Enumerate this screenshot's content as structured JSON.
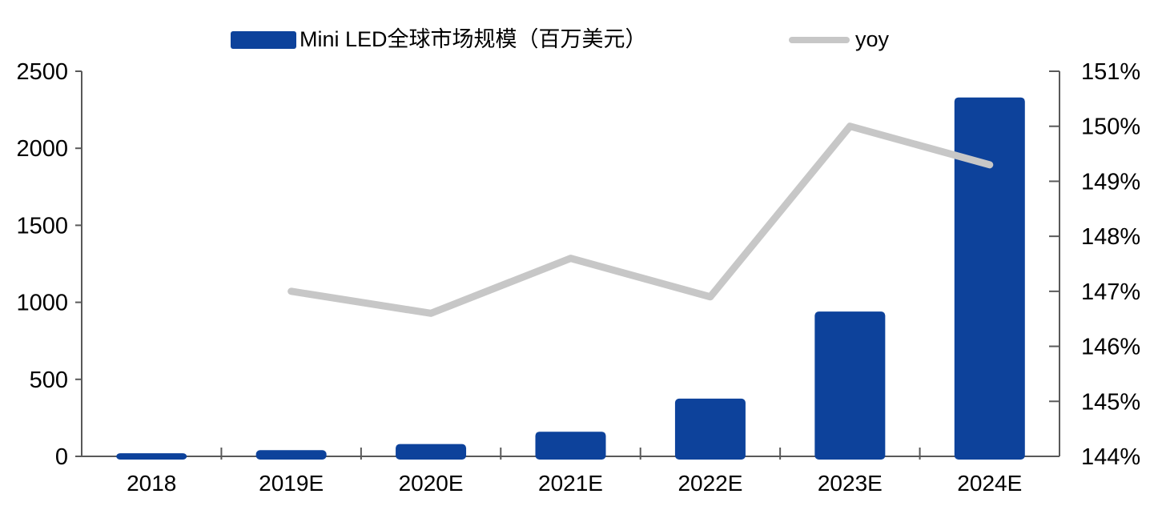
{
  "chart_data": {
    "type": "combo-bar-line",
    "title": "",
    "categories": [
      "2018",
      "2019E",
      "2020E",
      "2021E",
      "2022E",
      "2023E",
      "2024E"
    ],
    "series": [
      {
        "name": "Mini LED全球市场规模（百万美元）",
        "type": "bar",
        "axis": "left",
        "color": "#0d429b",
        "values": [
          20,
          40,
          80,
          160,
          375,
          940,
          2330
        ]
      },
      {
        "name": "yoy",
        "type": "line",
        "axis": "right",
        "color": "#c7c7c7",
        "values": [
          null,
          147.0,
          146.6,
          147.6,
          146.9,
          150.0,
          149.3
        ]
      }
    ],
    "left_axis": {
      "min": 0,
      "max": 2500,
      "step": 500,
      "ticks": [
        "0",
        "500",
        "1000",
        "1500",
        "2000",
        "2500"
      ]
    },
    "right_axis": {
      "min": 144,
      "max": 151,
      "step": 1,
      "ticks": [
        "144%",
        "145%",
        "146%",
        "147%",
        "148%",
        "149%",
        "150%",
        "151%"
      ]
    },
    "grid": false,
    "legend_position": "top"
  },
  "colors": {
    "bar": "#0d429b",
    "line": "#c7c7c7",
    "axis": "#595959",
    "text": "#000000",
    "background": "#ffffff"
  }
}
